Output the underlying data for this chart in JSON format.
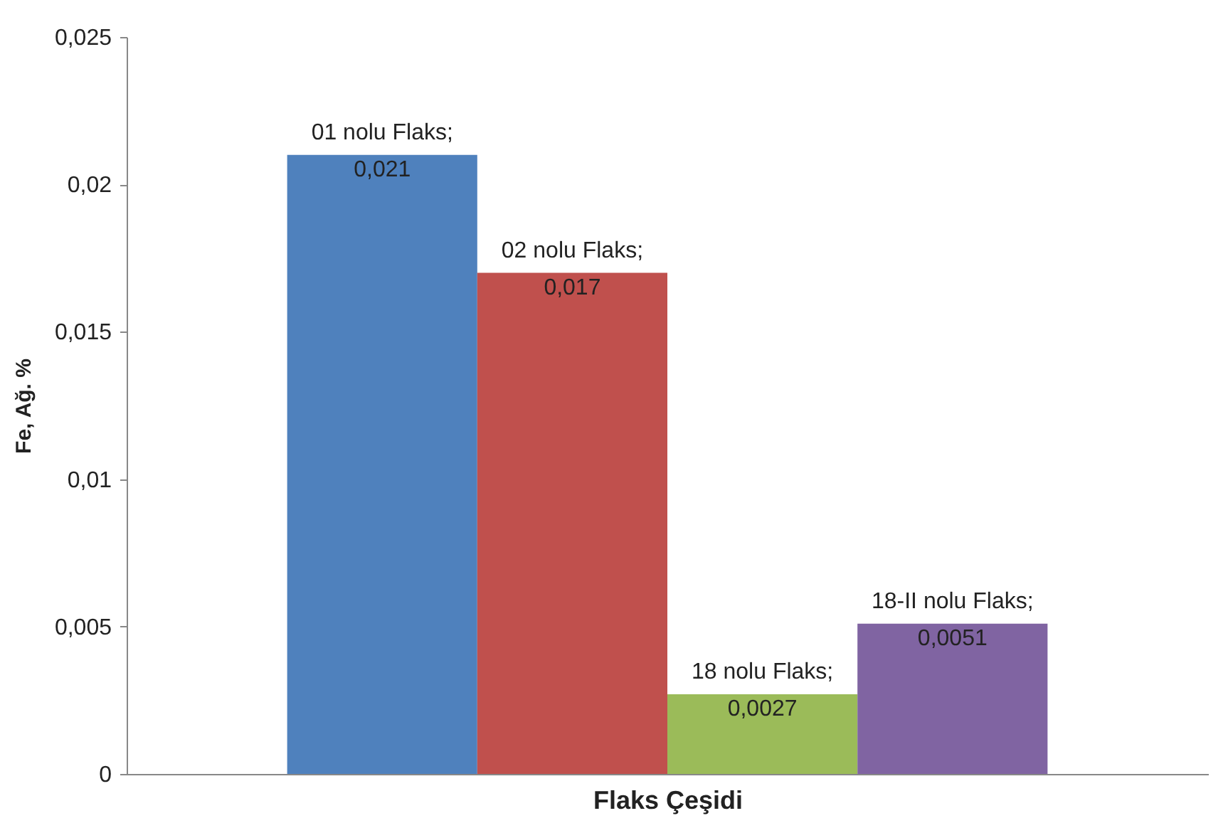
{
  "chart_data": {
    "type": "bar",
    "xlabel": "Flaks Çeşidi",
    "ylabel": "Fe, Ağ. %",
    "categories": [
      null
    ],
    "series": [
      {
        "name": "01 nolu Flaks;",
        "color": "#4f81bd",
        "values": [
          0.021
        ],
        "value_labels": [
          "0,021"
        ]
      },
      {
        "name": "02 nolu Flaks;",
        "color": "#c0504d",
        "values": [
          0.017
        ],
        "value_labels": [
          "0,017"
        ]
      },
      {
        "name": "18 nolu Flaks;",
        "color": "#9bbb59",
        "values": [
          0.0027
        ],
        "value_labels": [
          "0,0027"
        ]
      },
      {
        "name": "18-II nolu Flaks;",
        "color": "#8064a2",
        "values": [
          0.0051
        ],
        "value_labels": [
          "0,0051"
        ]
      }
    ],
    "ylim": [
      0,
      0.025
    ],
    "yticks": [
      0,
      {
        "value": 0.005,
        "label": "0,005"
      },
      {
        "value": 0.01,
        "label": "0,01"
      },
      {
        "value": 0.015,
        "label": "0,015"
      },
      {
        "value": 0.02,
        "label": "0,02"
      },
      {
        "value": 0.025,
        "label": "0,025"
      }
    ],
    "grid": false,
    "legend": false
  }
}
